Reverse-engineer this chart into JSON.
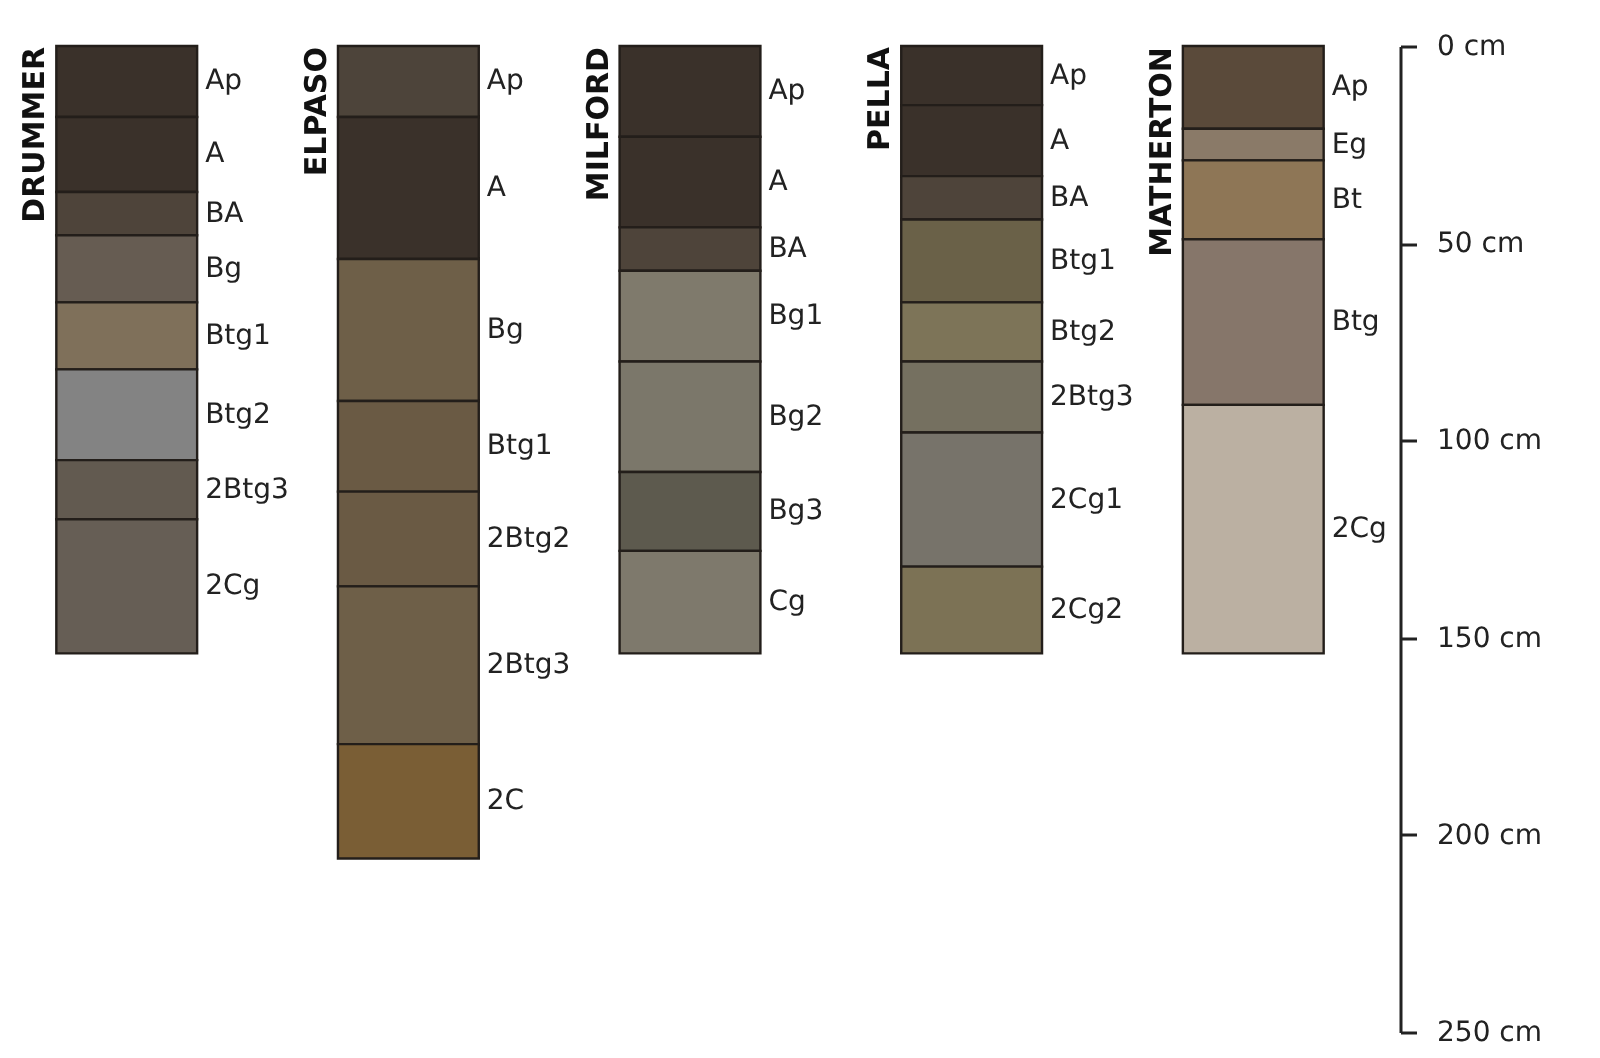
{
  "chart_data": {
    "type": "bar",
    "stacked": true,
    "categories": [
      "DRUMMER",
      "ELPASO",
      "MILFORD",
      "PELLA",
      "MATHERTON"
    ],
    "ylim": [
      250,
      0
    ],
    "yticks": [
      {
        "value": 0,
        "label": "0 cm"
      },
      {
        "value": 50,
        "label": "50 cm"
      },
      {
        "value": 100,
        "label": "100 cm"
      },
      {
        "value": 150,
        "label": "150 cm"
      },
      {
        "value": 200,
        "label": "200 cm"
      },
      {
        "value": 250,
        "label": "250 cm"
      }
    ],
    "series": [
      {
        "values": [
          18,
          18,
          23,
          15,
          21
        ],
        "colors": [
          "#3a312a",
          "#4d443a",
          "#3a312a",
          "#3a312a",
          "#5a4a3a"
        ]
      },
      {
        "values": [
          19,
          36,
          23,
          18,
          8
        ],
        "colors": [
          "#3a312a",
          "#3a312a",
          "#3a312a",
          "#3a312a",
          "#8a7a68"
        ]
      },
      {
        "values": [
          11,
          36,
          11,
          11,
          20
        ],
        "colors": [
          "#4e443a",
          "#6e5f48",
          "#4e443a",
          "#4e443a",
          "#8e7656"
        ]
      },
      {
        "values": [
          17,
          23,
          23,
          21,
          42
        ],
        "colors": [
          "#665c52",
          "#6a5a44",
          "#7f7a6c",
          "#6a6148",
          "#86766a"
        ]
      },
      {
        "values": [
          17,
          24,
          28,
          15,
          63
        ],
        "colors": [
          "#7f705a",
          "#6a5a44",
          "#7b776a",
          "#7d7458",
          "#bbb0a2"
        ]
      },
      {
        "values": [
          23,
          40,
          20,
          18,
          null
        ],
        "colors": [
          "#838383",
          "#6e5f48",
          "#5d5a4e",
          "#757060",
          null
        ]
      },
      {
        "values": [
          15,
          29,
          26,
          34,
          null
        ],
        "colors": [
          "#625a50",
          "#7a5e35",
          "#7e796c",
          "#77736a",
          null
        ]
      },
      {
        "values": [
          34,
          null,
          null,
          22,
          null
        ],
        "colors": [
          "#665e55",
          null,
          null,
          "#7c7255",
          null
        ]
      }
    ],
    "annotations": [
      "Ap",
      "A",
      "BA",
      "Bg",
      "Btg1",
      "Btg2",
      "2Btg3",
      "2Cg",
      "Ap",
      "A",
      "Bg",
      "Btg1",
      "2Btg2",
      "2Btg3",
      "2C",
      "Ap",
      "A",
      "BA",
      "Bg1",
      "Bg2",
      "Bg3",
      "Cg",
      "Ap",
      "A",
      "BA",
      "Btg1",
      "Btg2",
      "2Btg3",
      "2Cg1",
      "2Cg2",
      "Ap",
      "Eg",
      "Bt",
      "Btg",
      "2Cg"
    ]
  }
}
